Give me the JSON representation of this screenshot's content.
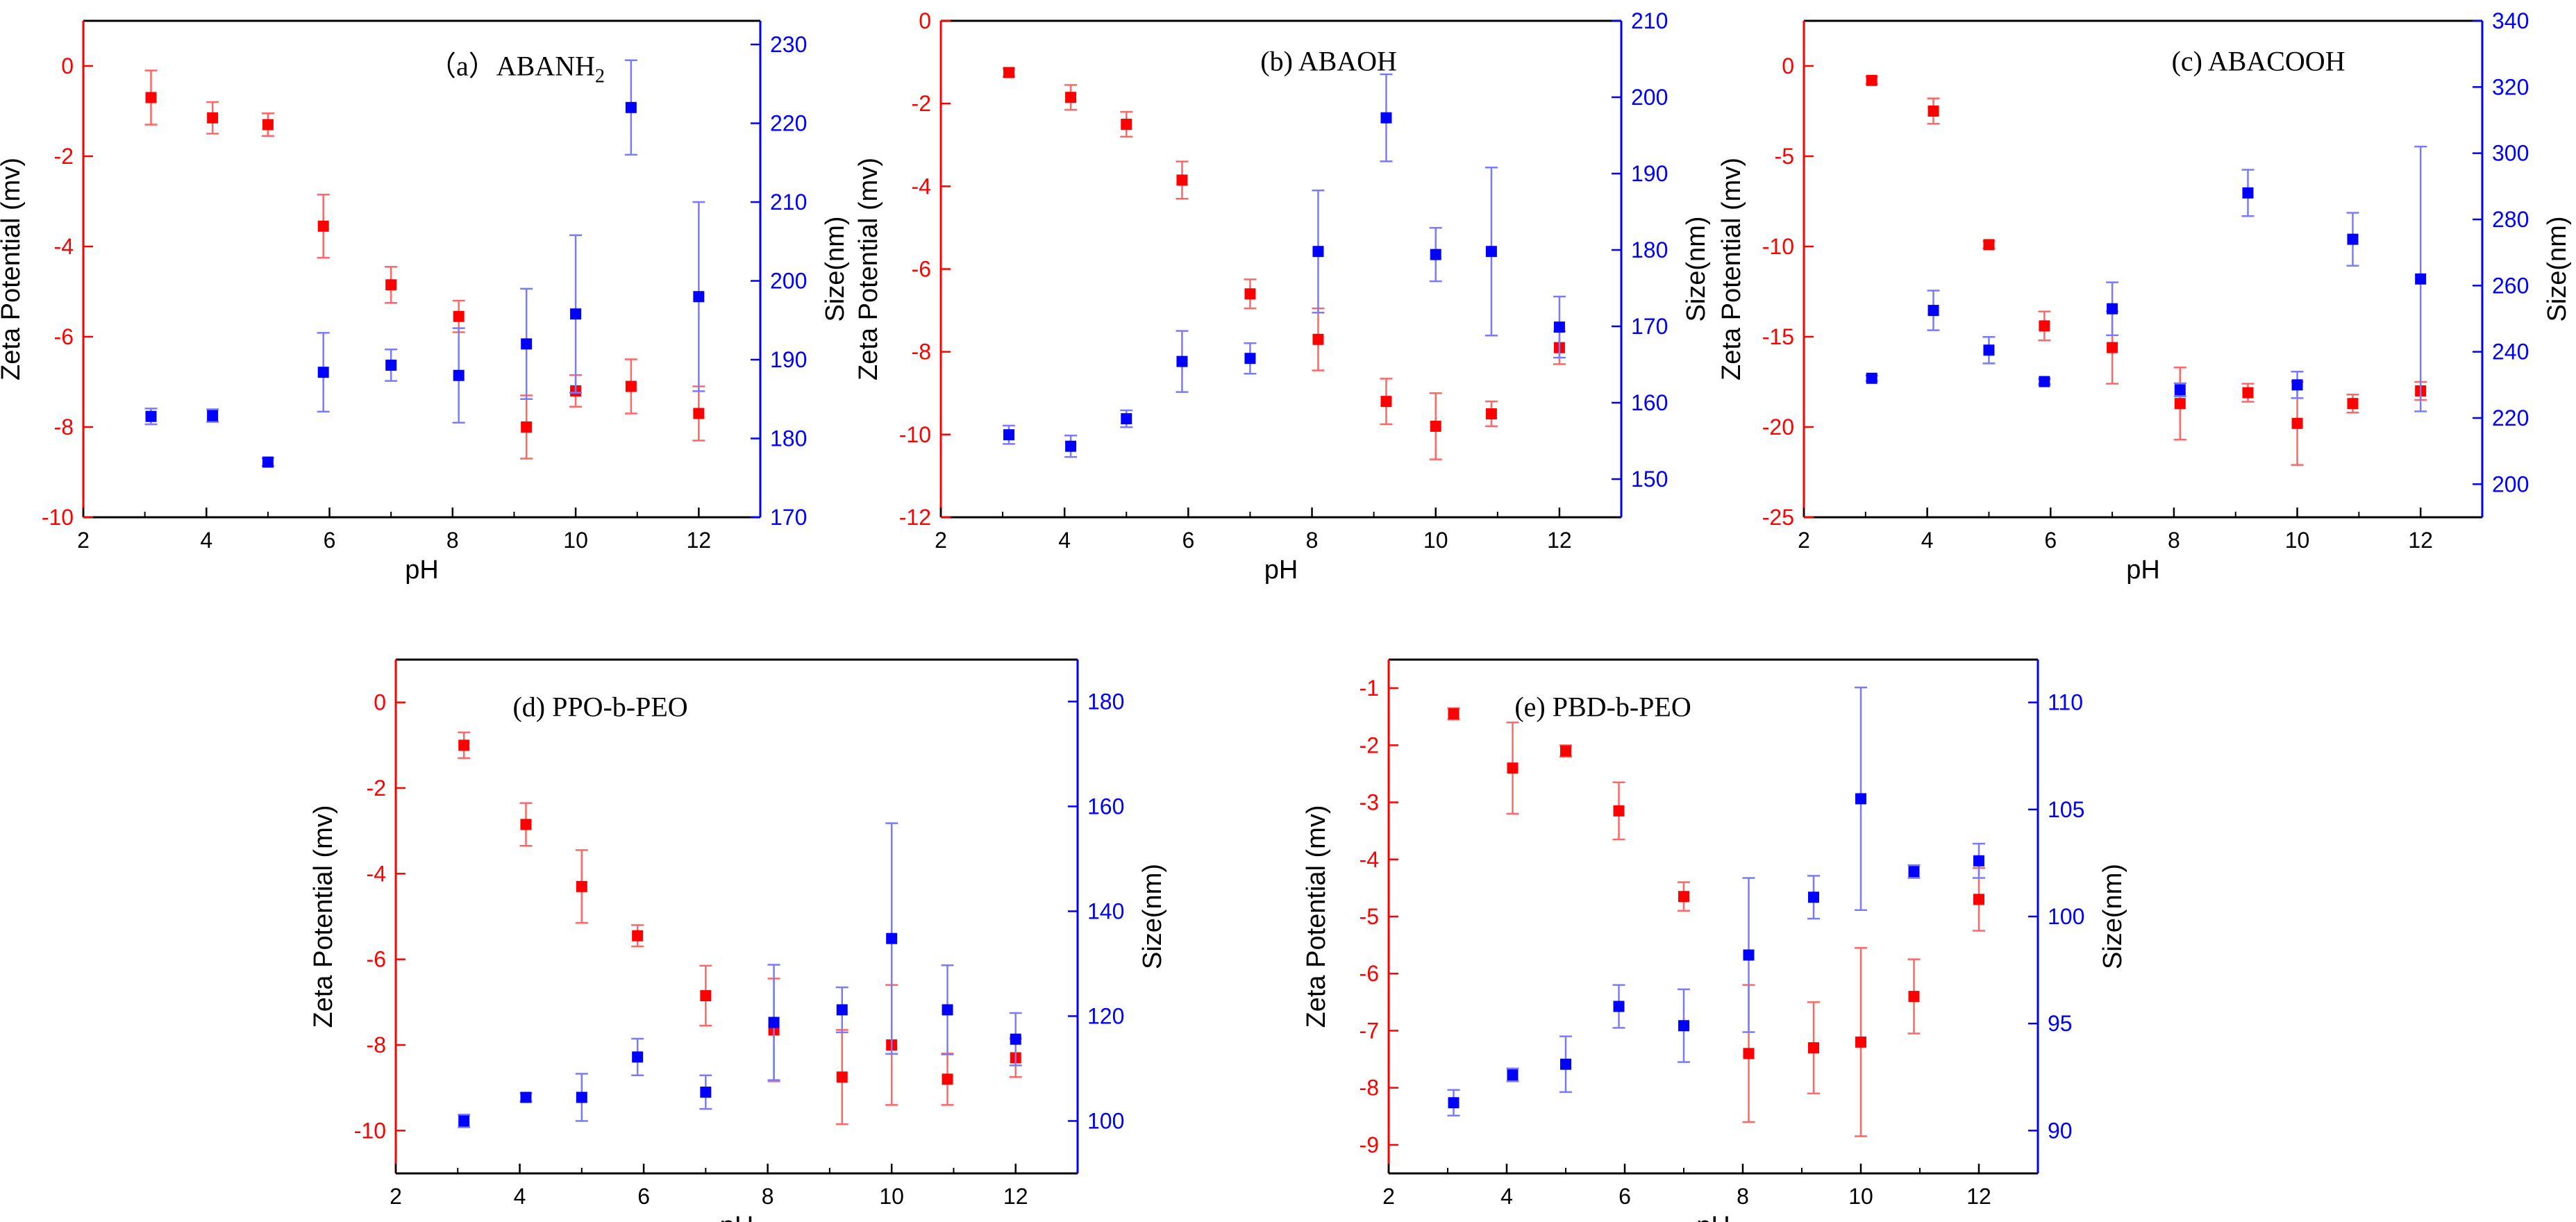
{
  "figure": {
    "colors": {
      "left": "#ff0000",
      "right": "#0000ff",
      "left_error": "#ff6666",
      "right_error": "#7a7aff",
      "frame": "#000000"
    }
  },
  "chart_data": [
    {
      "type": "scatter",
      "title": "(a) ABANH2",
      "title_parts": {
        "prefix": "（a）ABANH",
        "sub": "2"
      },
      "xlabel": "pH",
      "ylabel_left": "Zeta Potential (mv)",
      "ylabel_right": "Size(nm)",
      "xlim": [
        2,
        13
      ],
      "xticks": [
        2,
        4,
        6,
        8,
        10,
        12
      ],
      "ylim_left": [
        -10,
        1
      ],
      "yticks_left": [
        0,
        -2,
        -4,
        -6,
        -8,
        -10
      ],
      "ylim_right": [
        170,
        233
      ],
      "yticks_right": [
        170,
        180,
        190,
        200,
        210,
        220,
        230
      ],
      "x": [
        3.1,
        4.1,
        5.0,
        5.9,
        7.0,
        8.1,
        9.2,
        10.0,
        10.9,
        12.0
      ],
      "series": [
        {
          "name": "Zeta Potential",
          "axis": "left",
          "values": [
            -0.7,
            -1.15,
            -1.3,
            -3.55,
            -4.85,
            -5.55,
            -8.0,
            -7.2,
            -7.1,
            -7.7
          ],
          "errors": [
            0.6,
            0.35,
            0.25,
            0.7,
            0.4,
            0.35,
            0.7,
            0.35,
            0.6,
            0.6
          ]
        },
        {
          "name": "Size",
          "axis": "right",
          "values": [
            182.8,
            182.9,
            177.0,
            188.4,
            189.3,
            188.0,
            192.0,
            195.8,
            222.0,
            198.0
          ],
          "errors": [
            1.0,
            0.8,
            0.5,
            5.0,
            2.0,
            6.0,
            7.0,
            10.0,
            6.0,
            12.0
          ]
        }
      ]
    },
    {
      "type": "scatter",
      "title": "(b) ABAOH",
      "xlabel": "pH",
      "ylabel_left": "Zeta Potential (mv)",
      "ylabel_right": "Size(nm)",
      "xlim": [
        2,
        13
      ],
      "xticks": [
        2,
        4,
        6,
        8,
        10,
        12
      ],
      "ylim_left": [
        -12,
        0
      ],
      "yticks_left": [
        0,
        -2,
        -4,
        -6,
        -8,
        -10,
        -12
      ],
      "ylim_right": [
        145,
        210
      ],
      "yticks_right": [
        150,
        160,
        170,
        180,
        190,
        200,
        210
      ],
      "x": [
        3.1,
        4.1,
        5.0,
        5.9,
        7.0,
        8.1,
        9.2,
        10.0,
        10.9,
        12.0
      ],
      "series": [
        {
          "name": "Zeta Potential",
          "axis": "left",
          "values": [
            -1.25,
            -1.85,
            -2.5,
            -3.85,
            -6.6,
            -7.7,
            -9.2,
            -9.8,
            -9.5,
            -7.9
          ],
          "errors": [
            0.1,
            0.3,
            0.3,
            0.45,
            0.35,
            0.75,
            0.55,
            0.8,
            0.3,
            0.4
          ]
        },
        {
          "name": "Size",
          "axis": "right",
          "values": [
            155.8,
            154.3,
            157.9,
            165.4,
            165.8,
            179.8,
            197.3,
            179.4,
            179.8,
            169.9
          ],
          "errors": [
            1.2,
            1.4,
            1.1,
            4.0,
            2.0,
            8.0,
            5.7,
            3.5,
            11.0,
            4.0
          ]
        }
      ]
    },
    {
      "type": "scatter",
      "title": "(c) ABACOOH",
      "xlabel": "pH",
      "ylabel_left": "Zeta Potential (mv)",
      "ylabel_right": "Size(nm)",
      "xlim": [
        2,
        13
      ],
      "xticks": [
        2,
        4,
        6,
        8,
        10,
        12
      ],
      "ylim_left": [
        -25,
        2.5
      ],
      "yticks_left": [
        0,
        -5,
        -10,
        -15,
        -20,
        -25
      ],
      "ylim_right": [
        190,
        340
      ],
      "yticks_right": [
        200,
        220,
        240,
        260,
        280,
        300,
        320,
        340
      ],
      "x": [
        3.1,
        4.1,
        5.0,
        5.9,
        7.0,
        8.1,
        9.2,
        10.0,
        10.9,
        12.0
      ],
      "series": [
        {
          "name": "Zeta Potential",
          "axis": "left",
          "values": [
            -0.8,
            -2.5,
            -9.9,
            -14.4,
            -15.6,
            -18.7,
            -18.1,
            -19.8,
            -18.7,
            -18.0
          ],
          "errors": [
            0.2,
            0.7,
            0.2,
            0.8,
            2.0,
            2.0,
            0.5,
            2.3,
            0.5,
            0.5
          ]
        },
        {
          "name": "Size",
          "axis": "right",
          "values": [
            232.0,
            252.5,
            240.5,
            231.0,
            253.0,
            228.5,
            288.0,
            230.0,
            274.0,
            262.0
          ],
          "errors": [
            0.8,
            6.0,
            4.0,
            0.8,
            8.0,
            2.0,
            7.0,
            4.0,
            8.0,
            40.0
          ]
        }
      ]
    },
    {
      "type": "scatter",
      "title": "(d) PPO-b-PEO",
      "xlabel": "pH",
      "ylabel_left": "Zeta Potential (mv)",
      "ylabel_right": "Size(nm)",
      "xlim": [
        2,
        13
      ],
      "xticks": [
        2,
        4,
        6,
        8,
        10,
        12
      ],
      "ylim_left": [
        -11,
        1
      ],
      "yticks_left": [
        0,
        -2,
        -4,
        -6,
        -8,
        -10
      ],
      "ylim_right": [
        90,
        188
      ],
      "yticks_right": [
        100,
        120,
        140,
        160,
        180
      ],
      "x": [
        3.1,
        4.1,
        5.0,
        5.9,
        7.0,
        8.1,
        9.2,
        10.0,
        10.9,
        12.0
      ],
      "series": [
        {
          "name": "Zeta Potential",
          "axis": "left",
          "values": [
            -1.0,
            -2.85,
            -4.3,
            -5.45,
            -6.85,
            -7.65,
            -8.75,
            -8.0,
            -8.8,
            -8.3
          ],
          "errors": [
            0.3,
            0.5,
            0.85,
            0.25,
            0.7,
            1.2,
            1.1,
            1.4,
            0.6,
            0.45
          ]
        },
        {
          "name": "Size",
          "axis": "right",
          "values": [
            100.0,
            104.5,
            104.5,
            112.2,
            105.5,
            118.8,
            121.2,
            134.8,
            121.2,
            115.6
          ],
          "errors": [
            1.2,
            0.8,
            4.5,
            3.5,
            3.2,
            11.0,
            4.3,
            22.0,
            8.5,
            5.0
          ]
        }
      ]
    },
    {
      "type": "scatter",
      "title": "(e) PBD-b-PEO",
      "xlabel": "pH",
      "ylabel_left": "Zeta Potential (mv)",
      "ylabel_right": "Size(nm)",
      "xlim": [
        2,
        13
      ],
      "xticks": [
        2,
        4,
        6,
        8,
        10,
        12
      ],
      "ylim_left": [
        -9.5,
        -0.5
      ],
      "yticks_left": [
        -1,
        -2,
        -3,
        -4,
        -5,
        -6,
        -7,
        -8,
        -9
      ],
      "ylim_right": [
        88,
        112
      ],
      "yticks_right": [
        90,
        95,
        100,
        105,
        110
      ],
      "x": [
        3.1,
        4.1,
        5.0,
        5.9,
        7.0,
        8.1,
        9.2,
        10.0,
        10.9,
        12.0
      ],
      "series": [
        {
          "name": "Zeta Potential",
          "axis": "left",
          "values": [
            -1.45,
            -2.4,
            -2.1,
            -3.15,
            -4.65,
            -7.4,
            -7.3,
            -7.2,
            -6.4,
            -4.7
          ],
          "errors": [
            0.1,
            0.8,
            0.1,
            0.5,
            0.25,
            1.2,
            0.8,
            1.65,
            0.65,
            0.55
          ]
        },
        {
          "name": "Size",
          "axis": "right",
          "values": [
            91.3,
            92.6,
            93.1,
            95.8,
            94.9,
            98.2,
            100.9,
            105.5,
            102.1,
            102.6
          ],
          "errors": [
            0.6,
            0.3,
            1.3,
            1.0,
            1.7,
            3.6,
            1.0,
            5.2,
            0.3,
            0.8
          ]
        }
      ]
    }
  ]
}
